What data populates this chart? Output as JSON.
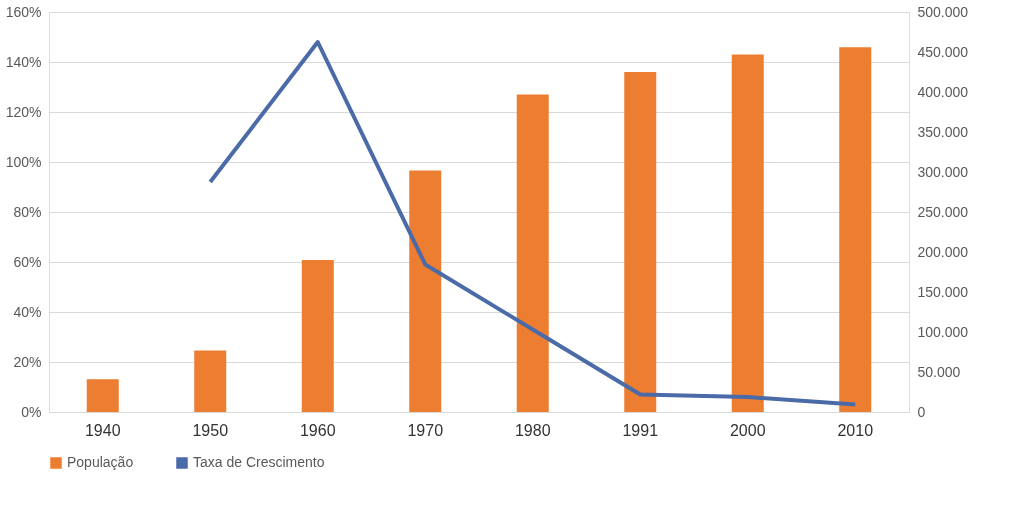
{
  "chart_data": {
    "type": "bar",
    "categories": [
      "1940",
      "1950",
      "1960",
      "1970",
      "1980",
      "1991",
      "2000",
      "2010"
    ],
    "series": [
      {
        "name": "População",
        "axis": "y2",
        "color": "#ed7d31",
        "values": [
          41000,
          77000,
          190000,
          302000,
          397000,
          425000,
          447000,
          456000
        ]
      },
      {
        "name": "Taxa de Crescimento",
        "type": "line",
        "color": "#4a6aa8",
        "values": [
          null,
          92,
          148,
          59,
          33,
          7,
          6,
          3
        ]
      }
    ],
    "ylim": [
      0,
      160
    ],
    "yticks": [
      {
        "value": 0,
        "label": "0%"
      },
      {
        "value": 20,
        "label": "20%"
      },
      {
        "value": 40,
        "label": "40%"
      },
      {
        "value": 60,
        "label": "60%"
      },
      {
        "value": 80,
        "label": "80%"
      },
      {
        "value": 100,
        "label": "100%"
      },
      {
        "value": 120,
        "label": "120%"
      },
      {
        "value": 140,
        "label": "140%"
      },
      {
        "value": 160,
        "label": "160%"
      }
    ],
    "y2lim": [
      0,
      500000
    ],
    "y2ticks": [
      0,
      {
        "value": 50000,
        "label": "50.000"
      },
      {
        "value": 100000,
        "label": "100.000"
      },
      {
        "value": 150000,
        "label": "150.000"
      },
      {
        "value": 200000,
        "label": "200.000"
      },
      {
        "value": 250000,
        "label": "250.000"
      },
      {
        "value": 300000,
        "label": "300.000"
      },
      {
        "value": 350000,
        "label": "350.000"
      },
      {
        "value": 400000,
        "label": "400.000"
      },
      {
        "value": 450000,
        "label": "450.000"
      },
      {
        "value": 500000,
        "label": "500.000"
      }
    ],
    "grid": "y",
    "legend": "bottom",
    "line_style": "solid",
    "marker": "none"
  }
}
